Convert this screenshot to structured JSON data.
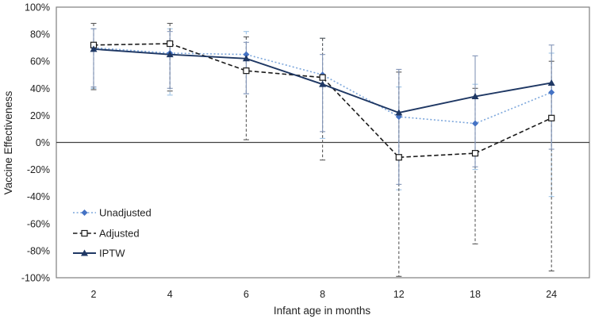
{
  "figure": {
    "background": "#ffffff",
    "border_color": "#7f7f7f",
    "zero_line_color": "#404040",
    "text_color": "#1f1f1f"
  },
  "chart_data": {
    "type": "line",
    "title": "",
    "xlabel": "Infant age in months",
    "ylabel": "Vaccine Effectiveness",
    "x_tick_labels": [
      "2",
      "4",
      "6",
      "8",
      "12",
      "18",
      "24"
    ],
    "y_tick_labels": [
      "100%",
      "80%",
      "60%",
      "40%",
      "20%",
      "0%",
      "-20%",
      "-40%",
      "-60%",
      "-80%",
      "-100%"
    ],
    "ylim": [
      -100,
      100
    ],
    "y_unit": "percent",
    "grid": false,
    "zero_line": true,
    "legend_position": "inside-left-middle",
    "series": [
      {
        "name": "Unadjusted",
        "values": [
          70,
          66,
          65,
          50,
          19,
          14,
          37
        ],
        "ci_low": [
          40,
          35,
          36,
          3,
          -35,
          -20,
          -40
        ],
        "ci_high": [
          84,
          84,
          82,
          77,
          41,
          43,
          66
        ],
        "line_color": "#7da7dc",
        "marker_color": "#4472c4",
        "error_color": "#9dc3e6",
        "line_style": "dotted",
        "error_style": "dashed",
        "marker": "diamond"
      },
      {
        "name": "Adjusted",
        "values": [
          72,
          73,
          53,
          48,
          -11,
          -8,
          18
        ],
        "ci_low": [
          39,
          38,
          2,
          -13,
          -99,
          -75,
          -95
        ],
        "ci_high": [
          88,
          88,
          78,
          77,
          52,
          40,
          60
        ],
        "line_color": "#1a1a1a",
        "marker_color": "#ffffff",
        "error_color": "#595959",
        "line_style": "dashed",
        "error_style": "dashed",
        "marker": "square-open"
      },
      {
        "name": "IPTW",
        "values": [
          69,
          65,
          62,
          43,
          22,
          34,
          44
        ],
        "ci_low": [
          41,
          40,
          36,
          8,
          -31,
          -18,
          -5
        ],
        "ci_high": [
          84,
          82,
          74,
          65,
          54,
          64,
          72
        ],
        "line_color": "#1f3864",
        "marker_color": "#1f3864",
        "error_color": "#8496b8",
        "line_style": "solid",
        "error_style": "solid",
        "marker": "triangle"
      }
    ]
  }
}
